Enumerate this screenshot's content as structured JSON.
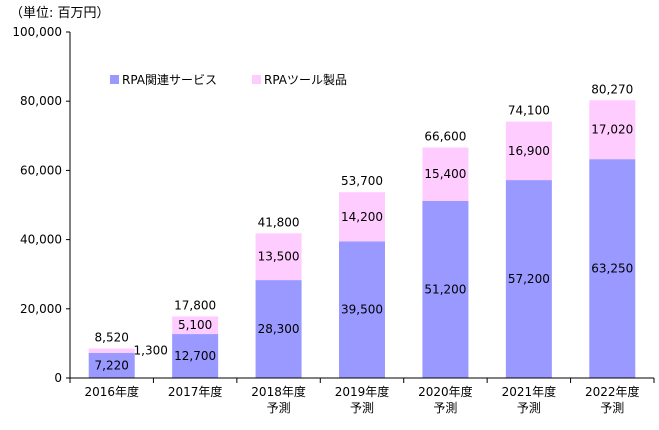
{
  "chart_data": {
    "type": "bar",
    "stacked": true,
    "unit_label": "（単位: 百万円）",
    "categories": [
      [
        "2016年度"
      ],
      [
        "2017年度"
      ],
      [
        "2018年度",
        "予測"
      ],
      [
        "2019年度",
        "予測"
      ],
      [
        "2020年度",
        "予測"
      ],
      [
        "2021年度",
        "予測"
      ],
      [
        "2022年度",
        "予測"
      ]
    ],
    "series": [
      {
        "name": "RPA関連サービス",
        "color": "#9999ff",
        "values": [
          7220,
          12700,
          28300,
          39500,
          51200,
          57200,
          63250
        ]
      },
      {
        "name": "RPAツール製品",
        "color": "#ffccff",
        "values": [
          1300,
          5100,
          13500,
          14200,
          15400,
          16900,
          17020
        ]
      }
    ],
    "value_labels": [
      [
        "7,220",
        "12,700",
        "28,300",
        "39,500",
        "51,200",
        "57,200",
        "63,250"
      ],
      [
        "1,300",
        "5,100",
        "13,500",
        "14,200",
        "15,400",
        "16,900",
        "17,020"
      ]
    ],
    "totals": [
      "8,520",
      "17,800",
      "41,800",
      "53,700",
      "66,600",
      "74,100",
      "80,270"
    ],
    "ylim": [
      0,
      100000
    ],
    "yticks": [
      "0",
      "20,000",
      "40,000",
      "60,000",
      "80,000",
      "100,000"
    ],
    "legend_placement": "top-left",
    "grid": false
  }
}
